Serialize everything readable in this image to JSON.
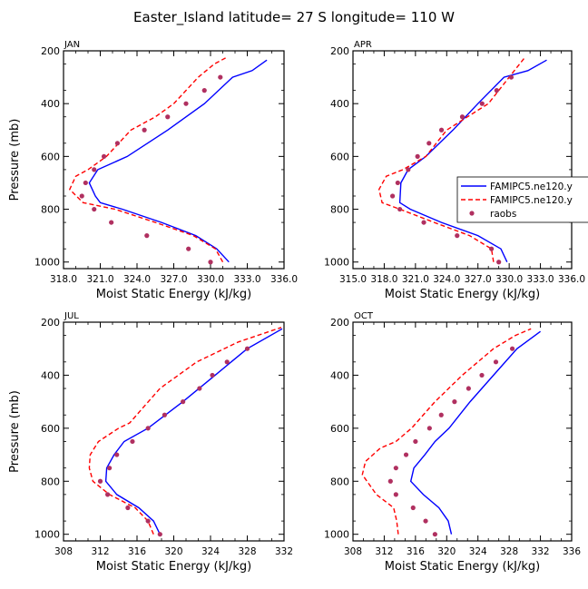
{
  "figure_title": "Easter_Island  latitude= 27 S longitude= 110 W",
  "legend": {
    "entries": [
      {
        "label": "FAMIPC5.ne120.y",
        "style": "solid",
        "color": "#0000ff"
      },
      {
        "label": "FAMIPC5.ne120.y",
        "style": "dashed",
        "color": "#ff0000"
      },
      {
        "label": "raobs",
        "style": "dot",
        "color": "#b03060"
      }
    ]
  },
  "chart_data": [
    {
      "type": "line",
      "panel": "JAN",
      "title": "JAN",
      "xlabel": "Moist Static Energy (kJ/kg)",
      "ylabel": "Pressure (mb)",
      "xlim": [
        318,
        336
      ],
      "ylim": [
        1025,
        200
      ],
      "xticks": [
        318,
        321,
        324,
        327,
        330,
        333,
        336
      ],
      "xtick_labels": [
        "318.0",
        "321.0",
        "324.0",
        "327.0",
        "330.0",
        "333.0",
        "336.0"
      ],
      "yticks": [
        200,
        400,
        600,
        800,
        1000
      ],
      "ytick_labels": [
        "200",
        "400",
        "600",
        "800",
        "1000"
      ],
      "series": [
        {
          "name": "FAMIPC5.ne120.y",
          "style": "solid",
          "color": "#0000ff",
          "x": [
            331.5,
            330.5,
            328.8,
            326.0,
            322.8,
            321.0,
            320.6,
            320.1,
            320.8,
            323.2,
            326.5,
            329.5,
            331.8,
            333.4,
            334.6
          ],
          "y": [
            1000,
            950,
            900,
            850,
            800,
            775,
            750,
            700,
            650,
            600,
            500,
            400,
            300,
            275,
            235
          ]
        },
        {
          "name": "FAMIPC5.ne120.y",
          "style": "dashed",
          "color": "#ff0000",
          "x": [
            331.0,
            330.4,
            328.6,
            325.5,
            322.2,
            319.6,
            318.5,
            319.0,
            320.0,
            321.5,
            323.5,
            325.5,
            327.0,
            329.0,
            330.3,
            331.3
          ],
          "y": [
            1000,
            950,
            900,
            850,
            800,
            775,
            725,
            675,
            650,
            600,
            500,
            450,
            400,
            300,
            250,
            225
          ]
        },
        {
          "name": "raobs",
          "style": "dot",
          "color": "#b03060",
          "x": [
            330.0,
            328.2,
            324.8,
            321.9,
            320.5,
            319.5,
            319.8,
            320.5,
            321.3,
            322.4,
            324.6,
            326.5,
            328.0,
            329.5,
            330.8
          ],
          "y": [
            1000,
            950,
            900,
            850,
            800,
            750,
            700,
            650,
            600,
            550,
            500,
            450,
            400,
            350,
            300
          ]
        }
      ]
    },
    {
      "type": "line",
      "panel": "APR",
      "title": "APR",
      "xlabel": "Moist Static Energy (kJ/kg)",
      "ylabel": "",
      "xlim": [
        315,
        336
      ],
      "ylim": [
        1025,
        200
      ],
      "xticks": [
        315,
        318,
        321,
        324,
        327,
        330,
        333,
        336
      ],
      "xtick_labels": [
        "315.0",
        "318.0",
        "321.0",
        "324.0",
        "327.0",
        "330.0",
        "333.0",
        "336.0"
      ],
      "yticks": [
        200,
        400,
        600,
        800,
        1000
      ],
      "ytick_labels": [
        "200",
        "400",
        "600",
        "800",
        "1000"
      ],
      "series": [
        {
          "name": "FAMIPC5.ne120.y",
          "style": "solid",
          "color": "#0000ff",
          "x": [
            329.8,
            329.2,
            327.0,
            323.5,
            320.5,
            319.5,
            319.6,
            320.3,
            322.0,
            324.6,
            327.0,
            329.5,
            331.8,
            333.6
          ],
          "y": [
            1000,
            950,
            900,
            850,
            800,
            775,
            700,
            650,
            600,
            500,
            400,
            300,
            275,
            235
          ]
        },
        {
          "name": "FAMIPC5.ne120.y",
          "style": "dashed",
          "color": "#ff0000",
          "x": [
            328.5,
            328.3,
            326.2,
            322.8,
            319.5,
            317.8,
            317.5,
            318.2,
            319.8,
            322.0,
            324.0,
            326.0,
            328.0,
            330.0,
            331.5
          ],
          "y": [
            1000,
            950,
            900,
            850,
            800,
            775,
            725,
            675,
            650,
            600,
            500,
            450,
            400,
            300,
            225
          ]
        },
        {
          "name": "raobs",
          "style": "dot",
          "color": "#b03060",
          "x": [
            329.0,
            328.3,
            325.0,
            321.8,
            319.5,
            318.8,
            319.3,
            320.3,
            321.2,
            322.3,
            323.5,
            325.5,
            327.4,
            328.8,
            330.2
          ],
          "y": [
            1000,
            950,
            900,
            850,
            800,
            750,
            700,
            650,
            600,
            550,
            500,
            450,
            400,
            350,
            300
          ]
        }
      ]
    },
    {
      "type": "line",
      "panel": "JUL",
      "title": "JUL",
      "xlabel": "Moist Static Energy (kJ/kg)",
      "ylabel": "Pressure (mb)",
      "xlim": [
        308,
        332
      ],
      "ylim": [
        1025,
        200
      ],
      "xticks": [
        308,
        312,
        316,
        320,
        324,
        328,
        332
      ],
      "xtick_labels": [
        "308",
        "312",
        "316",
        "320",
        "324",
        "328",
        "332"
      ],
      "yticks": [
        200,
        400,
        600,
        800,
        1000
      ],
      "ytick_labels": [
        "200",
        "400",
        "600",
        "800",
        "1000"
      ],
      "series": [
        {
          "name": "FAMIPC5.ne120.y",
          "style": "solid",
          "color": "#0000ff",
          "x": [
            318.5,
            317.8,
            316.2,
            313.8,
            312.6,
            312.7,
            313.5,
            314.6,
            317.2,
            321.0,
            324.5,
            328.0,
            331.8
          ],
          "y": [
            1000,
            950,
            900,
            850,
            800,
            750,
            700,
            650,
            600,
            500,
            400,
            300,
            225
          ]
        },
        {
          "name": "FAMIPC5.ne120.y",
          "style": "dashed",
          "color": "#ff0000",
          "x": [
            317.8,
            317.2,
            315.8,
            313.0,
            311.2,
            310.8,
            310.9,
            311.8,
            314.0,
            315.2,
            318.5,
            322.5,
            327.0,
            331.7
          ],
          "y": [
            1000,
            950,
            900,
            850,
            800,
            750,
            700,
            650,
            600,
            580,
            450,
            350,
            275,
            220
          ]
        },
        {
          "name": "raobs",
          "style": "dot",
          "color": "#b03060",
          "x": [
            318.5,
            317.2,
            315.0,
            312.8,
            312.0,
            313.0,
            313.8,
            315.5,
            317.2,
            319.0,
            321.0,
            322.8,
            324.2,
            325.8,
            328.0
          ],
          "y": [
            1000,
            950,
            900,
            850,
            800,
            750,
            700,
            650,
            600,
            550,
            500,
            450,
            400,
            350,
            300
          ]
        }
      ]
    },
    {
      "type": "line",
      "panel": "OCT",
      "title": "OCT",
      "xlabel": "Moist Static Energy (kJ/kg)",
      "ylabel": "",
      "xlim": [
        308,
        336
      ],
      "ylim": [
        1025,
        200
      ],
      "xticks": [
        308,
        312,
        316,
        320,
        324,
        328,
        332,
        336
      ],
      "xtick_labels": [
        "308",
        "312",
        "316",
        "320",
        "324",
        "328",
        "332",
        "336"
      ],
      "yticks": [
        200,
        400,
        600,
        800,
        1000
      ],
      "ytick_labels": [
        "200",
        "400",
        "600",
        "800",
        "1000"
      ],
      "series": [
        {
          "name": "FAMIPC5.ne120.y",
          "style": "solid",
          "color": "#0000ff",
          "x": [
            320.6,
            320.2,
            319.0,
            317.0,
            315.4,
            315.8,
            317.2,
            318.5,
            320.3,
            323.0,
            326.0,
            329.0,
            332.0
          ],
          "y": [
            1000,
            950,
            900,
            850,
            800,
            750,
            700,
            650,
            600,
            500,
            400,
            300,
            235
          ]
        },
        {
          "name": "FAMIPC5.ne120.y",
          "style": "dashed",
          "color": "#ff0000",
          "x": [
            313.8,
            313.6,
            313.2,
            311.0,
            309.2,
            309.6,
            311.5,
            313.5,
            315.5,
            318.5,
            322.0,
            326.0,
            328.8,
            330.8
          ],
          "y": [
            1000,
            950,
            900,
            850,
            775,
            725,
            675,
            650,
            600,
            500,
            400,
            300,
            250,
            225
          ]
        },
        {
          "name": "raobs",
          "style": "dot",
          "color": "#b03060",
          "x": [
            318.5,
            317.3,
            315.7,
            313.5,
            312.8,
            313.5,
            314.8,
            316.0,
            317.8,
            319.3,
            321.0,
            322.8,
            324.5,
            326.3,
            328.4
          ],
          "y": [
            1000,
            950,
            900,
            850,
            800,
            750,
            700,
            650,
            600,
            550,
            500,
            450,
            400,
            350,
            300
          ]
        }
      ]
    }
  ]
}
